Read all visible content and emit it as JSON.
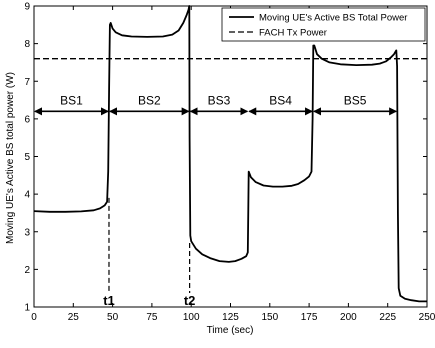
{
  "chart_data": {
    "type": "line",
    "title": "",
    "xlabel": "Time (sec)",
    "ylabel": "Moving UE's Active BS total power (W)",
    "xlim": [
      0,
      250
    ],
    "ylim": [
      1,
      9
    ],
    "x_ticks": [
      "0",
      "25",
      "50",
      "75",
      "100",
      "125",
      "150",
      "175",
      "200",
      "225",
      "250"
    ],
    "y_ticks": [
      "1",
      "2",
      "3",
      "4",
      "5",
      "6",
      "7",
      "8",
      "9"
    ],
    "grid": false,
    "legend_position": "top-right",
    "series": [
      {
        "name": "Moving UE's Active BS Total Power",
        "style": "solid",
        "color": "#000000",
        "points": [
          [
            0,
            3.55
          ],
          [
            10,
            3.53
          ],
          [
            20,
            3.53
          ],
          [
            30,
            3.54
          ],
          [
            38,
            3.57
          ],
          [
            42,
            3.62
          ],
          [
            45,
            3.7
          ],
          [
            46.5,
            3.8
          ],
          [
            47.2,
            4.6
          ],
          [
            47.8,
            6.8
          ],
          [
            48.3,
            8.5
          ],
          [
            48.8,
            8.55
          ],
          [
            50,
            8.4
          ],
          [
            52,
            8.3
          ],
          [
            56,
            8.22
          ],
          [
            62,
            8.19
          ],
          [
            72,
            8.18
          ],
          [
            82,
            8.19
          ],
          [
            88,
            8.24
          ],
          [
            92,
            8.35
          ],
          [
            95,
            8.55
          ],
          [
            97,
            8.75
          ],
          [
            98.3,
            8.9
          ],
          [
            98.8,
            9.0
          ],
          [
            99,
            5.5
          ],
          [
            99.4,
            2.9
          ],
          [
            100,
            2.75
          ],
          [
            103,
            2.55
          ],
          [
            107,
            2.4
          ],
          [
            112,
            2.3
          ],
          [
            118,
            2.22
          ],
          [
            124,
            2.2
          ],
          [
            128,
            2.22
          ],
          [
            132,
            2.28
          ],
          [
            135,
            2.35
          ],
          [
            136,
            2.45
          ],
          [
            136.3,
            3.6
          ],
          [
            136.6,
            4.6
          ],
          [
            138,
            4.45
          ],
          [
            141,
            4.32
          ],
          [
            146,
            4.23
          ],
          [
            152,
            4.2
          ],
          [
            158,
            4.2
          ],
          [
            164,
            4.22
          ],
          [
            168,
            4.27
          ],
          [
            172,
            4.37
          ],
          [
            175,
            4.47
          ],
          [
            176.5,
            4.6
          ],
          [
            177.2,
            6.0
          ],
          [
            177.7,
            7.95
          ],
          [
            178.3,
            7.95
          ],
          [
            180,
            7.72
          ],
          [
            183,
            7.6
          ],
          [
            188,
            7.5
          ],
          [
            195,
            7.45
          ],
          [
            205,
            7.43
          ],
          [
            215,
            7.44
          ],
          [
            220,
            7.47
          ],
          [
            224,
            7.53
          ],
          [
            227,
            7.63
          ],
          [
            229,
            7.72
          ],
          [
            230.5,
            7.82
          ],
          [
            231,
            7.4
          ],
          [
            231.5,
            3.5
          ],
          [
            232,
            1.5
          ],
          [
            233,
            1.3
          ],
          [
            236,
            1.22
          ],
          [
            240,
            1.18
          ],
          [
            245,
            1.15
          ],
          [
            250,
            1.15
          ]
        ]
      },
      {
        "name": "FACH Tx Power",
        "style": "dashed",
        "color": "#000000",
        "points": [
          [
            0,
            7.6
          ],
          [
            250,
            7.6
          ]
        ]
      }
    ],
    "annotations": {
      "zones_y": 6.2,
      "zones": [
        {
          "label": "BS1",
          "x_start": 0,
          "x_end": 47.7
        },
        {
          "label": "BS2",
          "x_start": 47.7,
          "x_end": 99
        },
        {
          "label": "BS3",
          "x_start": 99,
          "x_end": 136.3
        },
        {
          "label": "BS4",
          "x_start": 136.3,
          "x_end": 177.5
        },
        {
          "label": "BS5",
          "x_start": 177.5,
          "x_end": 231
        }
      ],
      "markers": [
        {
          "label": "t1",
          "x": 47.7,
          "y_top": 3.9
        },
        {
          "label": "t2",
          "x": 99,
          "y_top": 2.7
        }
      ]
    }
  }
}
